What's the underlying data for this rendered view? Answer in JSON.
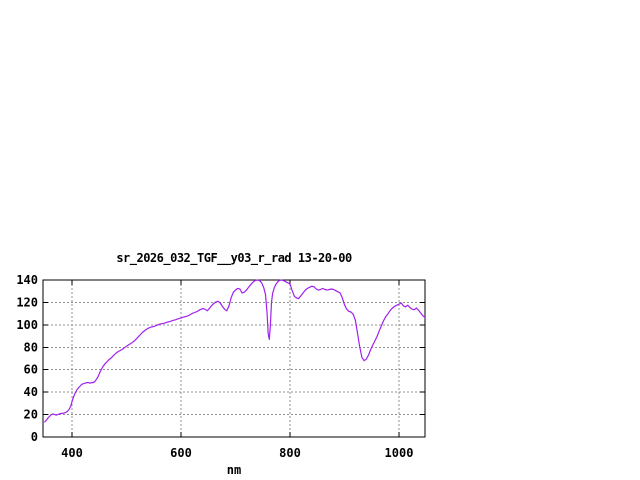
{
  "page": {
    "background": "#ffffff"
  },
  "chart_data": {
    "type": "line",
    "title": "sr_2026_032_TGF__y03_r_rad 13-20-00",
    "xlabel": "nm",
    "ylabel": "",
    "x_ticks": [
      400,
      600,
      800,
      1000
    ],
    "y_ticks": [
      0,
      20,
      40,
      60,
      80,
      100,
      120,
      140
    ],
    "xlim": [
      346.8,
      1047.7
    ],
    "ylim": [
      0,
      140
    ],
    "grid": true,
    "legend_position": "none",
    "colors": {
      "line": "#a020f0",
      "grid": "#909090",
      "axis": "#000000",
      "text": "#000000"
    },
    "series": [
      {
        "name": "sr_2026_032_TGF__y03_r_rad",
        "color": "#a020f0",
        "points": [
          [
            350,
            13.5
          ],
          [
            353,
            15
          ],
          [
            356,
            17
          ],
          [
            359,
            18.5
          ],
          [
            362,
            20
          ],
          [
            365,
            20.5
          ],
          [
            368,
            20
          ],
          [
            371,
            19.5
          ],
          [
            374,
            20
          ],
          [
            377,
            20.5
          ],
          [
            380,
            21
          ],
          [
            383,
            21
          ],
          [
            386,
            21.5
          ],
          [
            389,
            22
          ],
          [
            392,
            23
          ],
          [
            395,
            25
          ],
          [
            398,
            28
          ],
          [
            400,
            31.5
          ],
          [
            403,
            36
          ],
          [
            406,
            39.5
          ],
          [
            409,
            42
          ],
          [
            412,
            44
          ],
          [
            415,
            45.5
          ],
          [
            418,
            47
          ],
          [
            421,
            47.5
          ],
          [
            424,
            48
          ],
          [
            427,
            48.5
          ],
          [
            430,
            48.5
          ],
          [
            433,
            48
          ],
          [
            436,
            48.5
          ],
          [
            439,
            48.5
          ],
          [
            442,
            49.5
          ],
          [
            445,
            51.5
          ],
          [
            448,
            54
          ],
          [
            451,
            57.5
          ],
          [
            454,
            60.5
          ],
          [
            457,
            63
          ],
          [
            460,
            65
          ],
          [
            464,
            67
          ],
          [
            468,
            69
          ],
          [
            472,
            70.5
          ],
          [
            476,
            72.5
          ],
          [
            480,
            74.5
          ],
          [
            484,
            76
          ],
          [
            488,
            77
          ],
          [
            492,
            78
          ],
          [
            496,
            79.5
          ],
          [
            500,
            81
          ],
          [
            505,
            82.5
          ],
          [
            510,
            84
          ],
          [
            515,
            86
          ],
          [
            520,
            88.5
          ],
          [
            525,
            91
          ],
          [
            530,
            93.5
          ],
          [
            535,
            95.5
          ],
          [
            540,
            97
          ],
          [
            545,
            98
          ],
          [
            550,
            98.5
          ],
          [
            555,
            99.5
          ],
          [
            560,
            100.5
          ],
          [
            565,
            101
          ],
          [
            570,
            101.5
          ],
          [
            575,
            102.5
          ],
          [
            580,
            103
          ],
          [
            585,
            104
          ],
          [
            590,
            104.5
          ],
          [
            595,
            105.5
          ],
          [
            600,
            106
          ],
          [
            605,
            107
          ],
          [
            610,
            107.5
          ],
          [
            615,
            108.5
          ],
          [
            620,
            110
          ],
          [
            625,
            111
          ],
          [
            630,
            112
          ],
          [
            635,
            113.5
          ],
          [
            640,
            114.5
          ],
          [
            644,
            114
          ],
          [
            648,
            112.5
          ],
          [
            652,
            114.5
          ],
          [
            656,
            117
          ],
          [
            660,
            119
          ],
          [
            664,
            120.5
          ],
          [
            668,
            121
          ],
          [
            672,
            119.5
          ],
          [
            676,
            116.5
          ],
          [
            680,
            114
          ],
          [
            684,
            112.5
          ],
          [
            688,
            117
          ],
          [
            692,
            124
          ],
          [
            696,
            129
          ],
          [
            700,
            131
          ],
          [
            704,
            132.5
          ],
          [
            708,
            132
          ],
          [
            712,
            128.5
          ],
          [
            716,
            129
          ],
          [
            720,
            131
          ],
          [
            724,
            133.5
          ],
          [
            728,
            136
          ],
          [
            732,
            138
          ],
          [
            736,
            139.5
          ],
          [
            740,
            140
          ],
          [
            744,
            139.5
          ],
          [
            748,
            137.5
          ],
          [
            752,
            133
          ],
          [
            755,
            127
          ],
          [
            758,
            110
          ],
          [
            760,
            92
          ],
          [
            762,
            87
          ],
          [
            764,
            100
          ],
          [
            766,
            120
          ],
          [
            768,
            128
          ],
          [
            771,
            133
          ],
          [
            774,
            136
          ],
          [
            777,
            138
          ],
          [
            780,
            139.5
          ],
          [
            784,
            140
          ],
          [
            788,
            139.5
          ],
          [
            792,
            138.5
          ],
          [
            796,
            137.5
          ],
          [
            800,
            136.5
          ],
          [
            804,
            130.5
          ],
          [
            808,
            125.5
          ],
          [
            812,
            124
          ],
          [
            816,
            123.5
          ],
          [
            820,
            126
          ],
          [
            824,
            128.5
          ],
          [
            828,
            131
          ],
          [
            832,
            132.5
          ],
          [
            836,
            133.5
          ],
          [
            840,
            134.5
          ],
          [
            844,
            134
          ],
          [
            848,
            132
          ],
          [
            852,
            131
          ],
          [
            856,
            131.5
          ],
          [
            860,
            132.5
          ],
          [
            864,
            131.5
          ],
          [
            868,
            131
          ],
          [
            872,
            131.5
          ],
          [
            876,
            132
          ],
          [
            880,
            131.5
          ],
          [
            884,
            130.5
          ],
          [
            888,
            129.5
          ],
          [
            892,
            128.5
          ],
          [
            896,
            124
          ],
          [
            900,
            118
          ],
          [
            904,
            114
          ],
          [
            908,
            112
          ],
          [
            912,
            111.5
          ],
          [
            916,
            109.5
          ],
          [
            920,
            104
          ],
          [
            924,
            92
          ],
          [
            928,
            80
          ],
          [
            932,
            71
          ],
          [
            936,
            68
          ],
          [
            940,
            69.5
          ],
          [
            944,
            73
          ],
          [
            948,
            78
          ],
          [
            952,
            82
          ],
          [
            956,
            86
          ],
          [
            960,
            90
          ],
          [
            964,
            95
          ],
          [
            968,
            99.5
          ],
          [
            972,
            104
          ],
          [
            976,
            107.5
          ],
          [
            980,
            110
          ],
          [
            984,
            113
          ],
          [
            988,
            115
          ],
          [
            992,
            116.5
          ],
          [
            996,
            117.5
          ],
          [
            1000,
            118.5
          ],
          [
            1004,
            119.5
          ],
          [
            1008,
            117
          ],
          [
            1012,
            116
          ],
          [
            1016,
            117.5
          ],
          [
            1020,
            115.5
          ],
          [
            1024,
            114
          ],
          [
            1028,
            113.5
          ],
          [
            1032,
            115
          ],
          [
            1036,
            113
          ],
          [
            1040,
            110.5
          ],
          [
            1044,
            108
          ],
          [
            1048,
            106.5
          ]
        ]
      }
    ]
  }
}
